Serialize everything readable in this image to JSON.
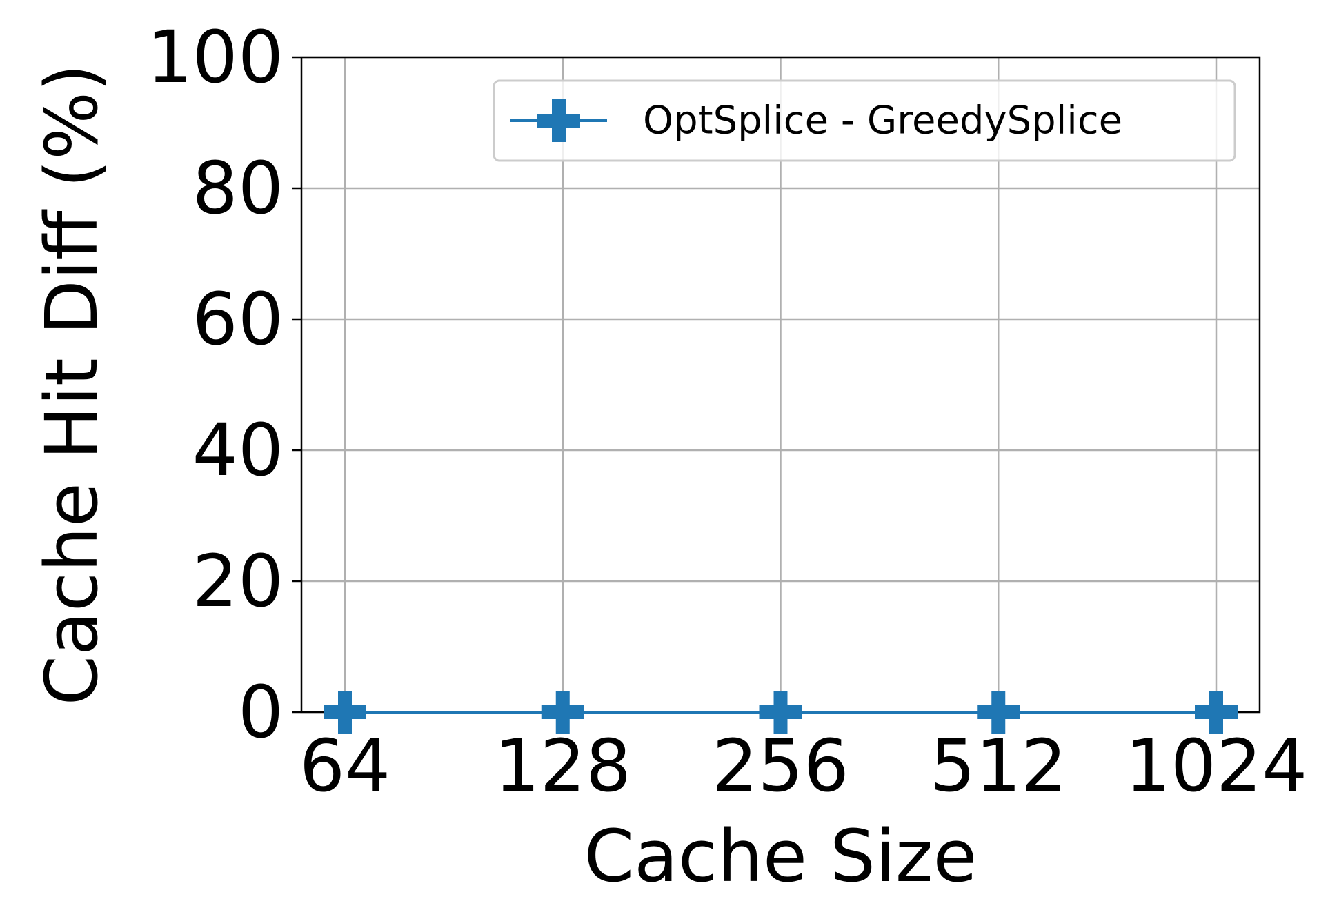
{
  "chart_data": {
    "type": "line",
    "categories": [
      "64",
      "128",
      "256",
      "512",
      "1024"
    ],
    "series": [
      {
        "name": "OptSplice - GreedySplice",
        "values": [
          0,
          0,
          0,
          0,
          0
        ],
        "color": "#1f77b4",
        "marker": "plus-filled"
      }
    ],
    "xlabel": "Cache Size",
    "ylabel": "Cache Hit Diff (%)",
    "ylim": [
      0,
      100
    ],
    "yticks": [
      0,
      20,
      40,
      60,
      80,
      100
    ],
    "grid": true,
    "legend_position": "top-right"
  }
}
